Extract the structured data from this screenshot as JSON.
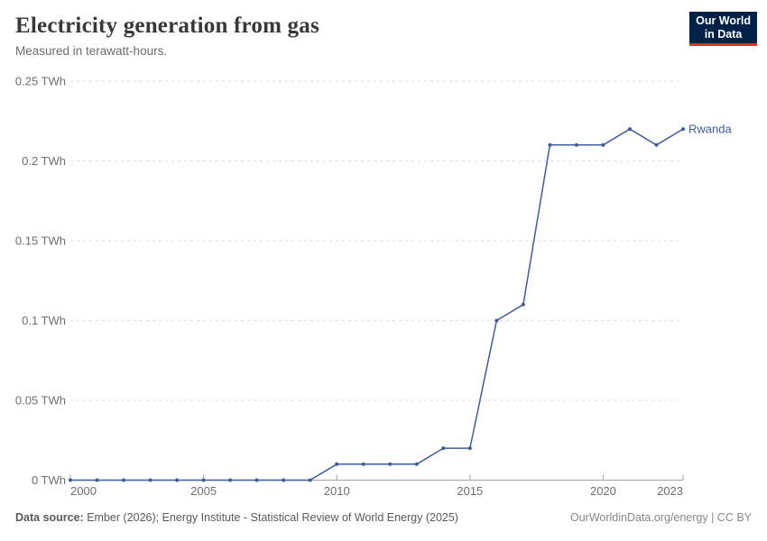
{
  "header": {
    "title": "Electricity generation from gas",
    "subtitle": "Measured in terawatt-hours.",
    "logo": {
      "line1": "Our World",
      "line2": "in Data",
      "bg_color": "#002147",
      "accent_color": "#d8352a"
    }
  },
  "chart_data": {
    "type": "line",
    "title": "Electricity generation from gas",
    "unit": "TWh",
    "grid": "horizontal-dashed",
    "legend_position": "end-of-line",
    "x": [
      2000,
      2001,
      2002,
      2003,
      2004,
      2005,
      2006,
      2007,
      2008,
      2009,
      2010,
      2011,
      2012,
      2013,
      2014,
      2015,
      2016,
      2017,
      2018,
      2019,
      2020,
      2021,
      2022,
      2023
    ],
    "series": [
      {
        "name": "Rwanda",
        "color": "#3e5c9e",
        "values": [
          0,
          0,
          0,
          0,
          0,
          0,
          0,
          0,
          0,
          0,
          0.01,
          0.01,
          0.01,
          0.01,
          0.02,
          0.02,
          0.1,
          0.11,
          0.21,
          0.21,
          0.21,
          0.22,
          0.21,
          0.22
        ]
      }
    ],
    "ylim": [
      0,
      0.25
    ],
    "yticks": [
      {
        "value": 0,
        "label": "0 TWh"
      },
      {
        "value": 0.05,
        "label": "0.05 TWh"
      },
      {
        "value": 0.1,
        "label": "0.1 TWh"
      },
      {
        "value": 0.15,
        "label": "0.15 TWh"
      },
      {
        "value": 0.2,
        "label": "0.2 TWh"
      },
      {
        "value": 0.25,
        "label": "0.25 TWh"
      }
    ],
    "xticks": [
      {
        "value": 2000,
        "label": "2000"
      },
      {
        "value": 2005,
        "label": "2005"
      },
      {
        "value": 2010,
        "label": "2010"
      },
      {
        "value": 2015,
        "label": "2015"
      },
      {
        "value": 2020,
        "label": "2020"
      },
      {
        "value": 2023,
        "label": "2023"
      }
    ],
    "colors": {
      "grid": "#dedede",
      "axis": "#a5a5a5",
      "tick_text": "#6e6e6e"
    }
  },
  "footer": {
    "source_label": "Data source:",
    "source_text": " Ember (2026); Energy Institute - Statistical Review of World Energy (2025)",
    "credit": "OurWorldinData.org/energy | CC BY"
  }
}
